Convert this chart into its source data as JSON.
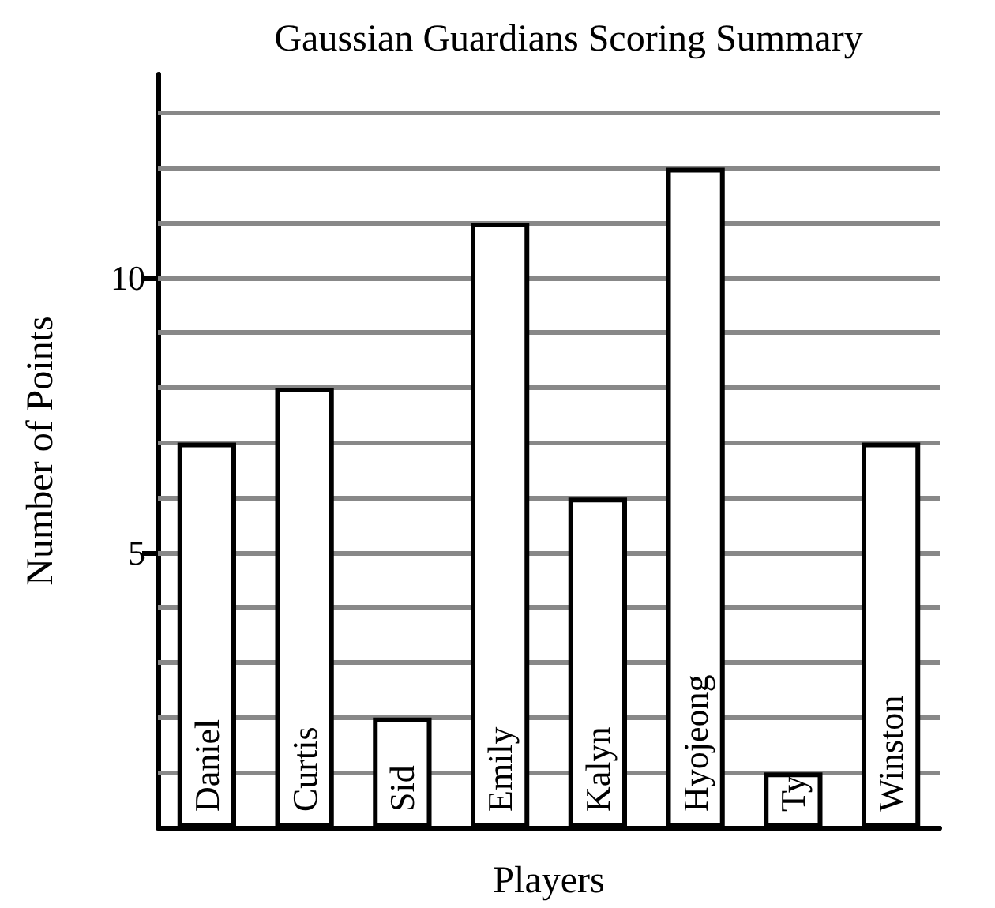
{
  "chart_data": {
    "type": "bar",
    "title": "Gaussian Guardians Scoring Summary",
    "xlabel": "Players",
    "ylabel": "Number of Points",
    "categories": [
      "Daniel",
      "Curtis",
      "Sid",
      "Emily",
      "Kalyn",
      "Hyojeong",
      "Ty",
      "Winston"
    ],
    "values": [
      7,
      8,
      2,
      11,
      6,
      12,
      1,
      7
    ],
    "color": "#ffffff",
    "ylim": [
      0,
      13.7
    ],
    "yticks": [
      {
        "value": 1,
        "label": null
      },
      {
        "value": 2,
        "label": null
      },
      {
        "value": 3,
        "label": null
      },
      {
        "value": 4,
        "label": null
      },
      5,
      {
        "value": 6,
        "label": null
      },
      {
        "value": 7,
        "label": null
      },
      {
        "value": 8,
        "label": null
      },
      {
        "value": 9,
        "label": null
      },
      10,
      {
        "value": 11,
        "label": null
      },
      {
        "value": 12,
        "label": null
      },
      {
        "value": 13,
        "label": null
      }
    ],
    "grid": true,
    "tick_labels": "y"
  }
}
